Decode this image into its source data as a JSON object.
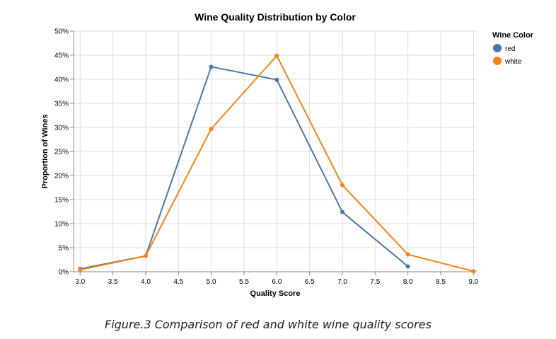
{
  "chart_data": {
    "type": "line",
    "title": "Wine Quality Distribution by Color",
    "xlabel": "Quality Score",
    "ylabel": "Proportion of Wines",
    "xlim": [
      2.9,
      9.05
    ],
    "ylim": [
      0,
      0.5
    ],
    "x_ticks": [
      "3.0",
      "3.5",
      "4.0",
      "4.5",
      "5.0",
      "5.5",
      "6.0",
      "6.5",
      "7.0",
      "7.5",
      "8.0",
      "8.5",
      "9.0"
    ],
    "y_ticks": [
      "0%",
      "5%",
      "10%",
      "15%",
      "20%",
      "25%",
      "30%",
      "35%",
      "40%",
      "45%",
      "50%"
    ],
    "grid": true,
    "legend": {
      "title": "Wine Color",
      "position": "right"
    },
    "series": [
      {
        "name": "red",
        "color": "#4c78a8",
        "points": [
          {
            "x": 3,
            "y": 0.006
          },
          {
            "x": 4,
            "y": 0.033
          },
          {
            "x": 5,
            "y": 0.426
          },
          {
            "x": 6,
            "y": 0.399
          },
          {
            "x": 7,
            "y": 0.124
          },
          {
            "x": 8,
            "y": 0.011
          }
        ]
      },
      {
        "name": "white",
        "color": "#f58518",
        "points": [
          {
            "x": 3,
            "y": 0.004
          },
          {
            "x": 4,
            "y": 0.033
          },
          {
            "x": 5,
            "y": 0.297
          },
          {
            "x": 6,
            "y": 0.449
          },
          {
            "x": 7,
            "y": 0.18
          },
          {
            "x": 8,
            "y": 0.036
          },
          {
            "x": 9,
            "y": 0.001
          }
        ]
      }
    ]
  },
  "caption": "Figure.3 Comparison of red and white wine quality scores"
}
